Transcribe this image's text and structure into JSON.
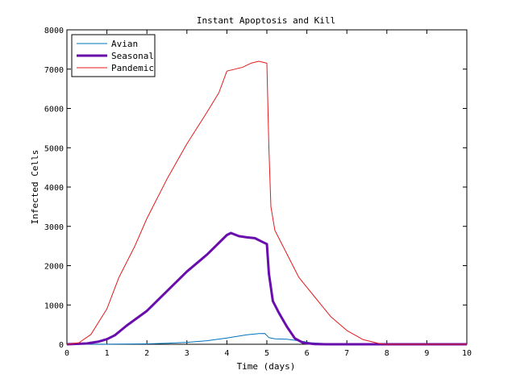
{
  "chart_data": {
    "type": "line",
    "title": "Instant Apoptosis and Kill",
    "xlabel": "Time (days)",
    "ylabel": "Infected Cells",
    "xlim": [
      0,
      10
    ],
    "ylim": [
      0,
      8000
    ],
    "xticks": [
      0,
      1,
      2,
      3,
      4,
      5,
      6,
      7,
      8,
      9,
      10
    ],
    "yticks": [
      0,
      1000,
      2000,
      3000,
      4000,
      5000,
      6000,
      7000,
      8000
    ],
    "grid": false,
    "legend_position": "top-left",
    "series": [
      {
        "name": "Avian",
        "color": "#0072bd",
        "width": "thin",
        "x": [
          0,
          1,
          2,
          2.5,
          3,
          3.5,
          4,
          4.5,
          4.8,
          4.95,
          5.05,
          5.2,
          5.5,
          5.8,
          6.1,
          6.5,
          7,
          10
        ],
        "y": [
          0,
          2,
          10,
          25,
          50,
          90,
          160,
          240,
          270,
          275,
          170,
          140,
          130,
          90,
          40,
          15,
          5,
          0
        ]
      },
      {
        "name": "Seasonal",
        "color": "#6a0dad",
        "width": "thick",
        "x": [
          0,
          0.5,
          0.8,
          1,
          1.2,
          1.5,
          2,
          2.5,
          3,
          3.5,
          4,
          4.1,
          4.3,
          4.5,
          4.7,
          4.9,
          5.0,
          5.05,
          5.15,
          5.3,
          5.5,
          5.7,
          5.9,
          6.2,
          6.5,
          7,
          10
        ],
        "y": [
          0,
          20,
          70,
          130,
          230,
          480,
          850,
          1350,
          1850,
          2280,
          2780,
          2830,
          2750,
          2720,
          2700,
          2600,
          2550,
          1800,
          1100,
          800,
          450,
          150,
          40,
          5,
          0,
          0,
          0
        ]
      },
      {
        "name": "Pandemic",
        "color": "#e41a1c",
        "width": "thin",
        "x": [
          0,
          0.3,
          0.6,
          1,
          1.3,
          1.7,
          2,
          2.5,
          3,
          3.5,
          3.8,
          4.0,
          4.2,
          4.4,
          4.6,
          4.8,
          5.0,
          5.05,
          5.1,
          5.2,
          5.5,
          5.8,
          6.2,
          6.6,
          7.0,
          7.4,
          7.8,
          8,
          10
        ],
        "y": [
          0,
          40,
          250,
          900,
          1700,
          2500,
          3200,
          4200,
          5100,
          5900,
          6400,
          6950,
          7000,
          7050,
          7150,
          7200,
          7150,
          5000,
          3500,
          2900,
          2300,
          1700,
          1200,
          700,
          350,
          120,
          20,
          0,
          0
        ]
      }
    ]
  }
}
